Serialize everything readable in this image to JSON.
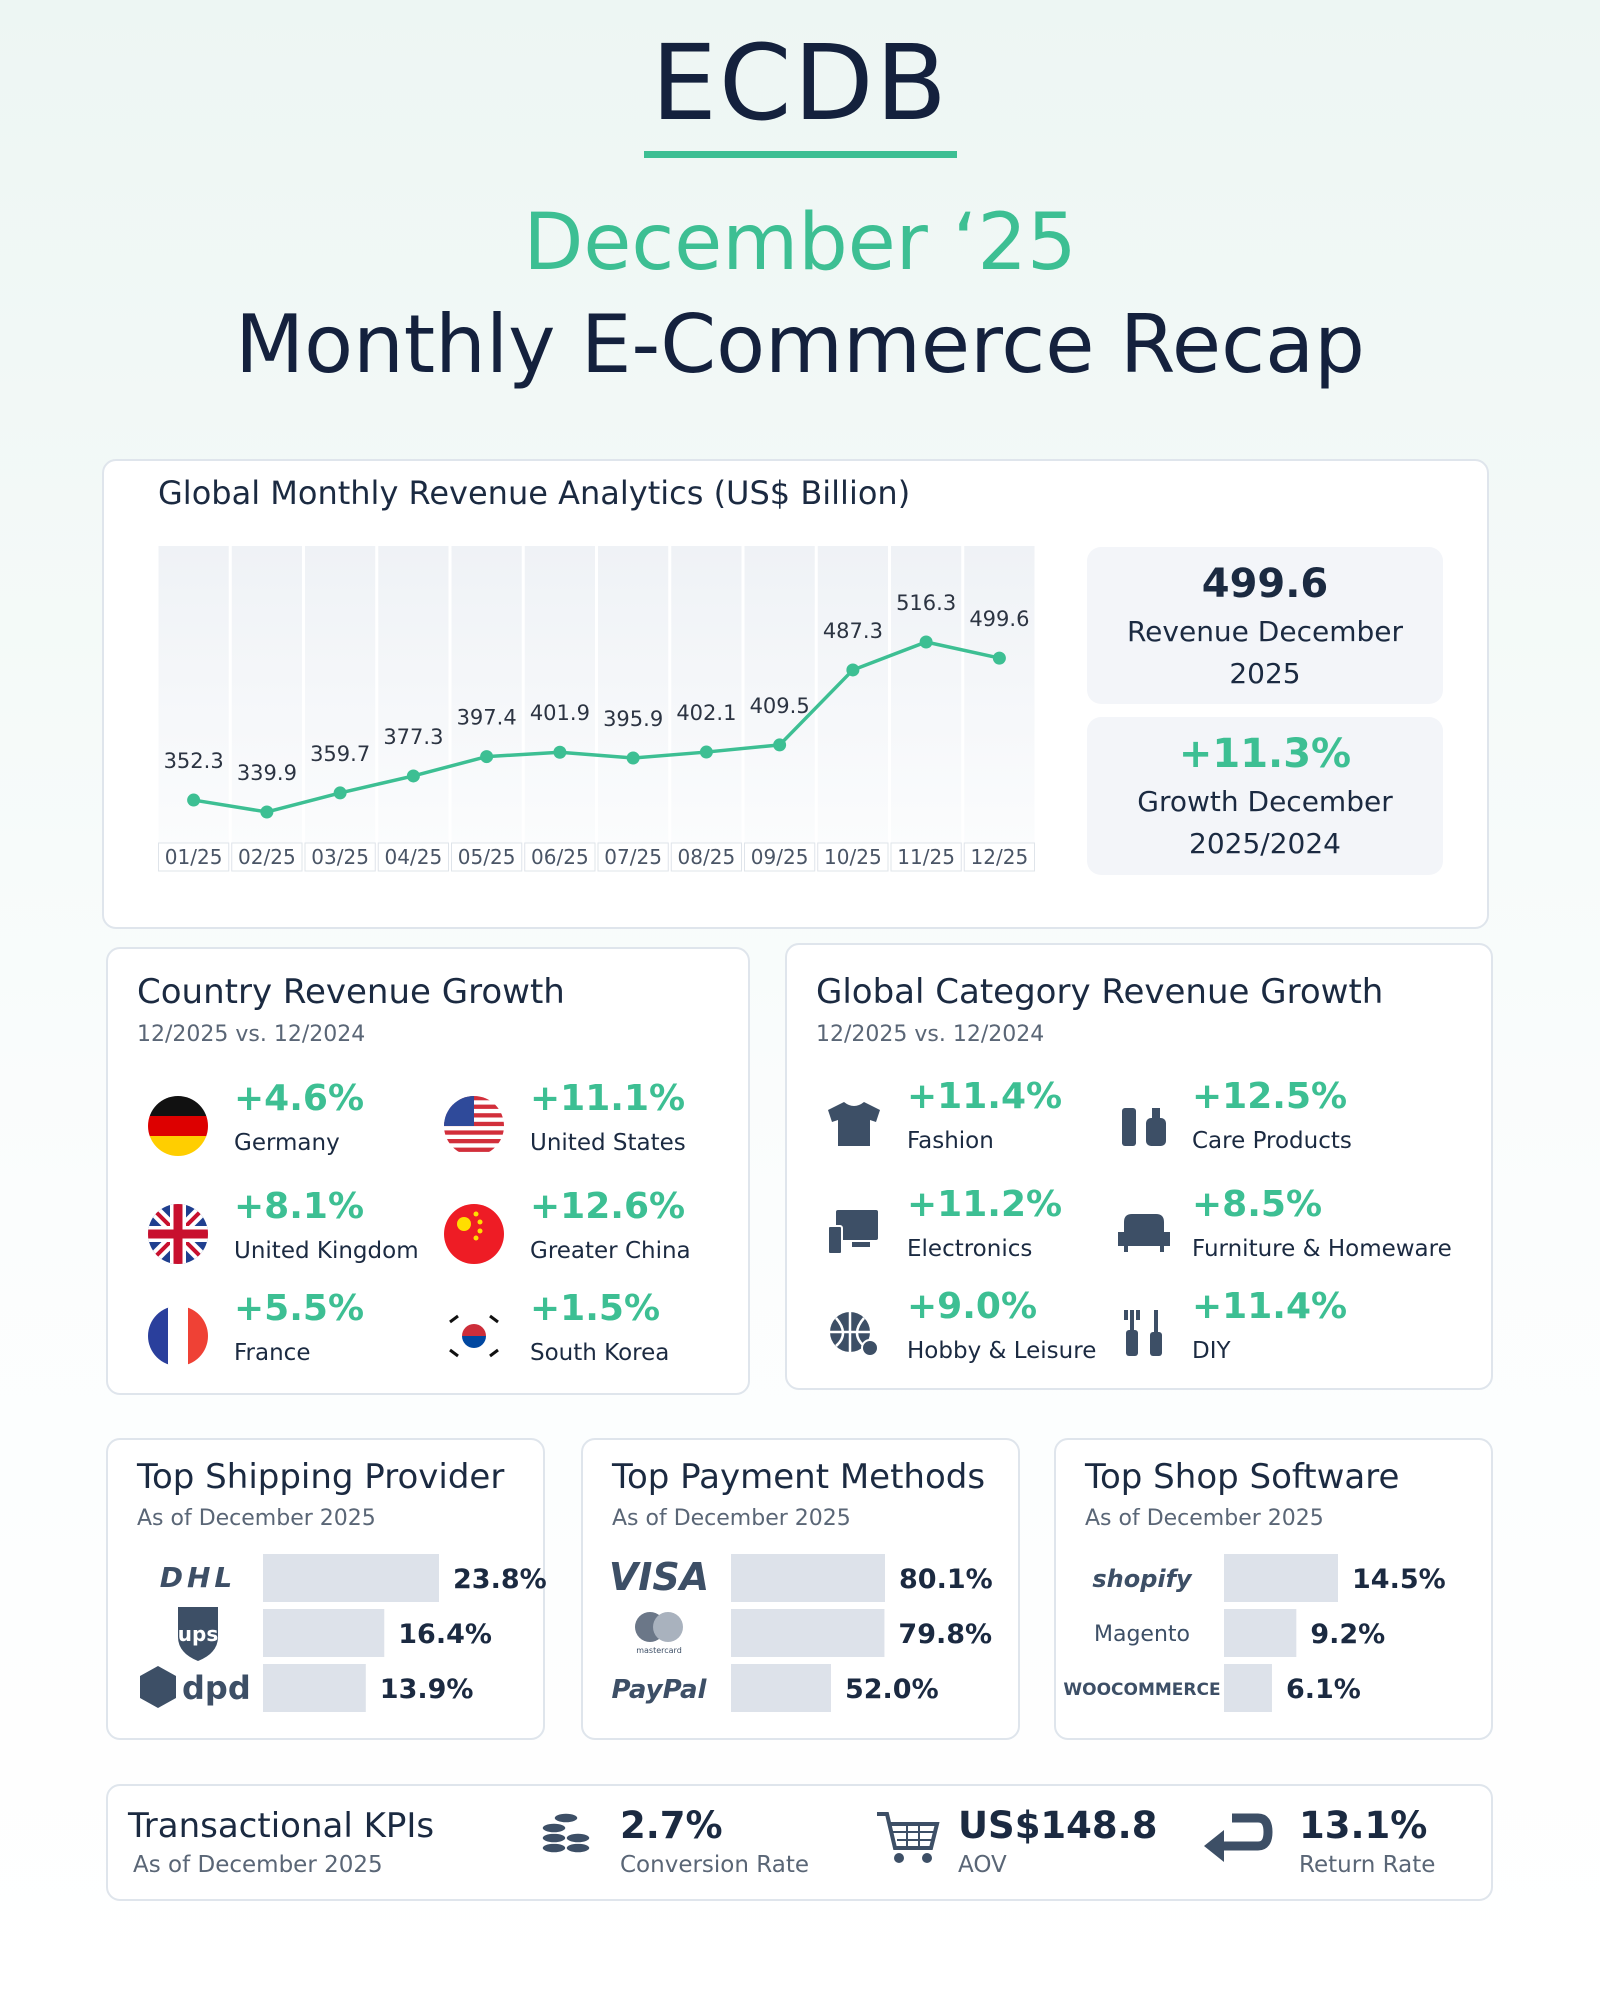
{
  "header": {
    "logo": "ECDB",
    "month": "December ‘25",
    "title": "Monthly E-Commerce Recap"
  },
  "chart_data": {
    "type": "line",
    "title": "Global Monthly Revenue Analytics (US$ Billion)",
    "categories": [
      "01/25",
      "02/25",
      "03/25",
      "04/25",
      "05/25",
      "06/25",
      "07/25",
      "08/25",
      "09/25",
      "10/25",
      "11/25",
      "12/25"
    ],
    "values": [
      352.3,
      339.9,
      359.7,
      377.3,
      397.4,
      401.9,
      395.9,
      402.1,
      409.5,
      487.3,
      516.3,
      499.6
    ],
    "color": "#3dbf93"
  },
  "highlights": [
    {
      "value": "499.6",
      "label": "Revenue December 2025"
    },
    {
      "value": "+11.3%",
      "label": "Growth December 2025/2024"
    }
  ],
  "country_growth": {
    "title": "Country Revenue Growth",
    "subtitle": "12/2025 vs. 12/2024",
    "items": [
      {
        "value": "+4.6%",
        "label": "Germany"
      },
      {
        "value": "+11.1%",
        "label": "United States"
      },
      {
        "value": "+8.1%",
        "label": "United Kingdom"
      },
      {
        "value": "+12.6%",
        "label": "Greater China"
      },
      {
        "value": "+5.5%",
        "label": "France"
      },
      {
        "value": "+1.5%",
        "label": "South Korea"
      }
    ]
  },
  "category_growth": {
    "title": "Global Category Revenue Growth",
    "subtitle": "12/2025 vs. 12/2024",
    "items": [
      {
        "value": "+11.4%",
        "label": "Fashion"
      },
      {
        "value": "+12.5%",
        "label": "Care Products"
      },
      {
        "value": "+11.2%",
        "label": "Electronics"
      },
      {
        "value": "+8.5%",
        "label": "Furniture & Homeware"
      },
      {
        "value": "+9.0%",
        "label": "Hobby & Leisure"
      },
      {
        "value": "+11.4%",
        "label": "DIY"
      }
    ]
  },
  "rankings": [
    {
      "title": "Top Shipping Provider",
      "subtitle": "As of December 2025",
      "names": [
        "DHL",
        "ups",
        "dpd"
      ],
      "values": [
        23.8,
        16.4,
        13.9
      ],
      "value_labels": [
        "23.8%",
        "16.4%",
        "13.9%"
      ]
    },
    {
      "title": "Top Payment Methods",
      "subtitle": "As of December 2025",
      "names": [
        "VISA",
        "mastercard",
        "PayPal"
      ],
      "values": [
        80.1,
        79.8,
        52.0
      ],
      "value_labels": [
        "80.1%",
        "79.8%",
        "52.0%"
      ]
    },
    {
      "title": "Top Shop Software",
      "subtitle": "As of December 2025",
      "names": [
        "shopify",
        "Magento",
        "WOOCOMMERCE"
      ],
      "values": [
        14.5,
        9.2,
        6.1
      ],
      "value_labels": [
        "14.5%",
        "9.2%",
        "6.1%"
      ]
    }
  ],
  "kpis": {
    "title": "Transactional KPIs",
    "subtitle": "As of December 2025",
    "items": [
      {
        "value": "2.7%",
        "label": "Conversion Rate"
      },
      {
        "value": "US$148.8",
        "label": "AOV"
      },
      {
        "value": "13.1%",
        "label": "Return Rate"
      }
    ]
  }
}
